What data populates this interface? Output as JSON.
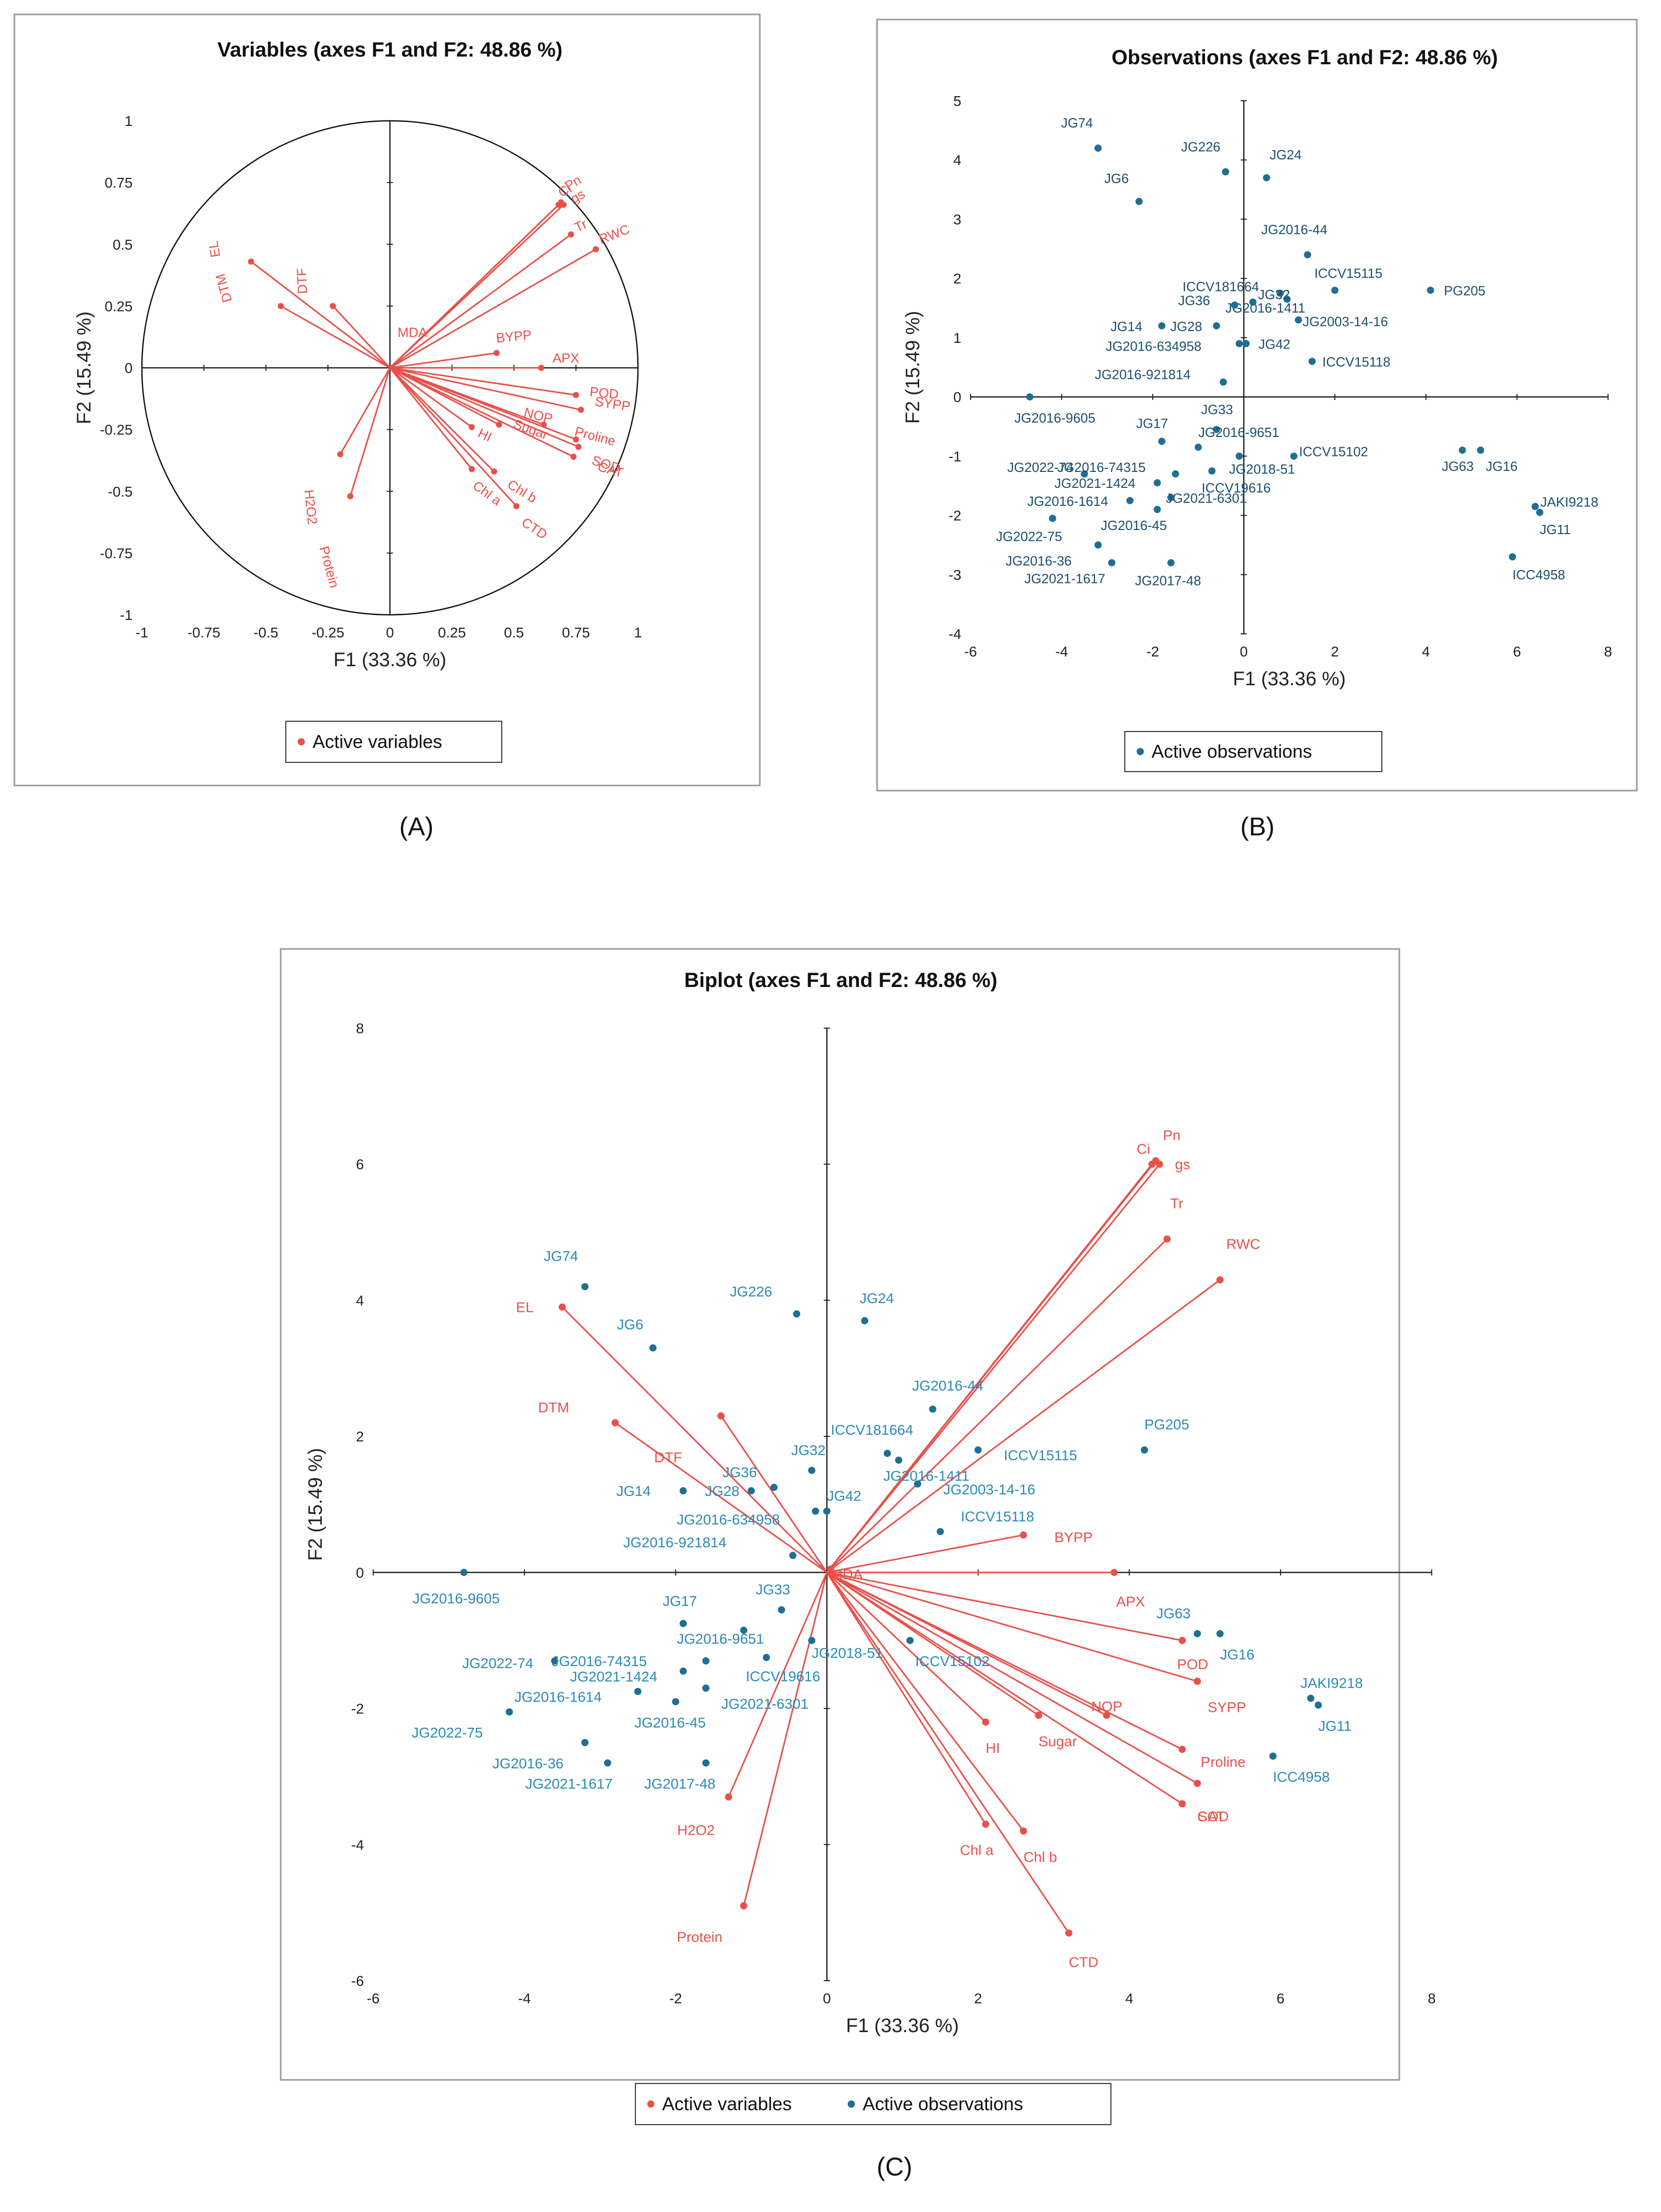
{
  "colors": {
    "variables": "#e8514b",
    "observations": "#1f6f93",
    "observation_labels_biplot": "#2c8ab4"
  },
  "chart_data": [
    {
      "id": "A",
      "type": "scatter",
      "caption": "(A)",
      "title": "Variables (axes F1 and F2: 48.86 %)",
      "xlabel": "F1 (33.36 %)",
      "ylabel": "F2 (15.49 %)",
      "xlim": [
        -1,
        1
      ],
      "ylim": [
        -1,
        1
      ],
      "xticks": [
        "-1",
        "-0.75",
        "-0.5",
        "-0.25",
        "0",
        "0.25",
        "0.5",
        "0.75",
        "1"
      ],
      "yticks": [
        "-1",
        "-0.75",
        "-0.5",
        "-0.25",
        "0",
        "0.25",
        "0.5",
        "0.75",
        "1"
      ],
      "legend": [
        "Active variables"
      ],
      "variables": [
        {
          "name": "Ci",
          "x": 0.68,
          "y": 0.66
        },
        {
          "name": "Pn",
          "x": 0.69,
          "y": 0.67
        },
        {
          "name": "gs",
          "x": 0.7,
          "y": 0.66
        },
        {
          "name": "Tr",
          "x": 0.73,
          "y": 0.54
        },
        {
          "name": "RWC",
          "x": 0.83,
          "y": 0.48
        },
        {
          "name": "EL",
          "x": -0.56,
          "y": 0.43
        },
        {
          "name": "DTF",
          "x": -0.23,
          "y": 0.25
        },
        {
          "name": "DTM",
          "x": -0.44,
          "y": 0.25
        },
        {
          "name": "MDA",
          "x": 0.01,
          "y": 0.0
        },
        {
          "name": "BYPP",
          "x": 0.43,
          "y": 0.06
        },
        {
          "name": "APX",
          "x": 0.61,
          "y": 0.0
        },
        {
          "name": "POD",
          "x": 0.75,
          "y": -0.11
        },
        {
          "name": "SYPP",
          "x": 0.77,
          "y": -0.17
        },
        {
          "name": "NOP",
          "x": 0.62,
          "y": -0.23
        },
        {
          "name": "Proline",
          "x": 0.75,
          "y": -0.29
        },
        {
          "name": "SOD",
          "x": 0.74,
          "y": -0.36
        },
        {
          "name": "CAT",
          "x": 0.76,
          "y": -0.32
        },
        {
          "name": "HI",
          "x": 0.33,
          "y": -0.24
        },
        {
          "name": "Sugar",
          "x": 0.44,
          "y": -0.23
        },
        {
          "name": "Chl b",
          "x": 0.42,
          "y": -0.42
        },
        {
          "name": "Chl a",
          "x": 0.33,
          "y": -0.41
        },
        {
          "name": "CTD",
          "x": 0.51,
          "y": -0.56
        },
        {
          "name": "H2O2",
          "x": -0.2,
          "y": -0.35
        },
        {
          "name": "Protein",
          "x": -0.16,
          "y": -0.52
        }
      ]
    },
    {
      "id": "B",
      "type": "scatter",
      "caption": "(B)",
      "title": "Observations (axes F1 and F2: 48.86 %)",
      "xlabel": "F1 (33.36 %)",
      "ylabel": "F2 (15.49 %)",
      "xlim": [
        -6,
        8
      ],
      "ylim": [
        -4,
        5
      ],
      "xticks": [
        "-6",
        "-4",
        "-2",
        "0",
        "2",
        "4",
        "6",
        "8"
      ],
      "yticks": [
        "-4",
        "-3",
        "-2",
        "-1",
        "0",
        "1",
        "2",
        "3",
        "4",
        "5"
      ],
      "legend": [
        "Active observations"
      ],
      "observations": [
        {
          "name": "JG74",
          "x": -3.2,
          "y": 4.2
        },
        {
          "name": "JG226",
          "x": -0.4,
          "y": 3.8
        },
        {
          "name": "JG24",
          "x": 0.5,
          "y": 3.7
        },
        {
          "name": "JG6",
          "x": -2.3,
          "y": 3.3
        },
        {
          "name": "JG2016-44",
          "x": 1.4,
          "y": 2.4
        },
        {
          "name": "ICCV15115",
          "x": 2.0,
          "y": 1.8
        },
        {
          "name": "PG205",
          "x": 4.1,
          "y": 1.8
        },
        {
          "name": "ICCV181664",
          "x": 0.8,
          "y": 1.75
        },
        {
          "name": "JG2016-1411",
          "x": 0.95,
          "y": 1.65
        },
        {
          "name": "JG36",
          "x": -0.2,
          "y": 1.55
        },
        {
          "name": "JG32",
          "x": 0.2,
          "y": 1.6
        },
        {
          "name": "JG2003-14-16",
          "x": 1.2,
          "y": 1.3
        },
        {
          "name": "JG14",
          "x": -1.8,
          "y": 1.2
        },
        {
          "name": "JG28",
          "x": -0.6,
          "y": 1.2
        },
        {
          "name": "JG42",
          "x": 0.05,
          "y": 0.9
        },
        {
          "name": "JG2016-634958",
          "x": -0.1,
          "y": 0.9
        },
        {
          "name": "ICCV15118",
          "x": 1.5,
          "y": 0.6
        },
        {
          "name": "JG2016-921814",
          "x": -0.45,
          "y": 0.25
        },
        {
          "name": "JG2016-9605",
          "x": -4.7,
          "y": 0.0
        },
        {
          "name": "JG33",
          "x": -0.6,
          "y": -0.55
        },
        {
          "name": "JG17",
          "x": -1.8,
          "y": -0.75
        },
        {
          "name": "JG2016-9651",
          "x": -1.0,
          "y": -0.85
        },
        {
          "name": "JG2018-51",
          "x": -0.1,
          "y": -1.0
        },
        {
          "name": "ICCV15102",
          "x": 1.1,
          "y": -1.0
        },
        {
          "name": "JG63",
          "x": 4.8,
          "y": -0.9
        },
        {
          "name": "JG16",
          "x": 5.2,
          "y": -0.9
        },
        {
          "name": "JG2022-74",
          "x": -3.5,
          "y": -1.3
        },
        {
          "name": "JG2016-74315",
          "x": -1.5,
          "y": -1.3
        },
        {
          "name": "ICCV19616",
          "x": -0.7,
          "y": -1.25
        },
        {
          "name": "JG2021-1424",
          "x": -1.9,
          "y": -1.45
        },
        {
          "name": "JG2016-1614",
          "x": -2.5,
          "y": -1.75
        },
        {
          "name": "JG2021-6301",
          "x": -1.6,
          "y": -1.7
        },
        {
          "name": "JG2016-45",
          "x": -1.9,
          "y": -1.9
        },
        {
          "name": "JAKI9218",
          "x": 6.4,
          "y": -1.85
        },
        {
          "name": "JG11",
          "x": 6.5,
          "y": -1.95
        },
        {
          "name": "JG2022-75",
          "x": -4.2,
          "y": -2.05
        },
        {
          "name": "JG2016-36",
          "x": -3.2,
          "y": -2.5
        },
        {
          "name": "JG2021-1617",
          "x": -2.9,
          "y": -2.8
        },
        {
          "name": "JG2017-48",
          "x": -1.6,
          "y": -2.8
        },
        {
          "name": "ICC4958",
          "x": 5.9,
          "y": -2.7
        }
      ]
    },
    {
      "id": "C",
      "type": "scatter",
      "caption": "(C)",
      "title": "Biplot (axes F1 and F2: 48.86 %)",
      "xlabel": "F1 (33.36 %)",
      "ylabel": "F2 (15.49 %)",
      "xlim": [
        -6,
        8
      ],
      "ylim": [
        -6,
        8
      ],
      "xticks": [
        "-6",
        "-4",
        "-2",
        "0",
        "2",
        "4",
        "6",
        "8"
      ],
      "yticks": [
        "-6",
        "-4",
        "-2",
        "0",
        "2",
        "4",
        "6",
        "8"
      ],
      "legend": [
        "Active variables",
        "Active observations"
      ],
      "variables": [
        {
          "name": "Ci",
          "x": 4.3,
          "y": 6.0
        },
        {
          "name": "Pn",
          "x": 4.35,
          "y": 6.05
        },
        {
          "name": "gs",
          "x": 4.4,
          "y": 6.0
        },
        {
          "name": "Tr",
          "x": 4.5,
          "y": 4.9
        },
        {
          "name": "RWC",
          "x": 5.2,
          "y": 4.3
        },
        {
          "name": "EL",
          "x": -3.5,
          "y": 3.9
        },
        {
          "name": "DTF",
          "x": -1.4,
          "y": 2.3
        },
        {
          "name": "DTM",
          "x": -2.8,
          "y": 2.2
        },
        {
          "name": "MDA",
          "x": 0.05,
          "y": 0.05
        },
        {
          "name": "BYPP",
          "x": 2.6,
          "y": 0.55
        },
        {
          "name": "APX",
          "x": 3.8,
          "y": 0.0
        },
        {
          "name": "POD",
          "x": 4.7,
          "y": -1.0
        },
        {
          "name": "SYPP",
          "x": 4.9,
          "y": -1.6
        },
        {
          "name": "NOP",
          "x": 3.7,
          "y": -2.1
        },
        {
          "name": "Proline",
          "x": 4.7,
          "y": -2.6
        },
        {
          "name": "SOD",
          "x": 4.7,
          "y": -3.4
        },
        {
          "name": "CAT",
          "x": 4.9,
          "y": -3.1
        },
        {
          "name": "HI",
          "x": 2.1,
          "y": -2.2
        },
        {
          "name": "Sugar",
          "x": 2.8,
          "y": -2.1
        },
        {
          "name": "Chl b",
          "x": 2.6,
          "y": -3.8
        },
        {
          "name": "Chl a",
          "x": 2.1,
          "y": -3.7
        },
        {
          "name": "CTD",
          "x": 3.2,
          "y": -5.3
        },
        {
          "name": "H2O2",
          "x": -1.3,
          "y": -3.3
        },
        {
          "name": "Protein",
          "x": -1.1,
          "y": -4.9
        }
      ],
      "observations": [
        {
          "name": "JG74",
          "x": -3.2,
          "y": 4.2
        },
        {
          "name": "JG226",
          "x": -0.4,
          "y": 3.8
        },
        {
          "name": "JG24",
          "x": 0.5,
          "y": 3.7
        },
        {
          "name": "JG6",
          "x": -2.3,
          "y": 3.3
        },
        {
          "name": "JG2016-44",
          "x": 1.4,
          "y": 2.4
        },
        {
          "name": "ICCV15115",
          "x": 2.0,
          "y": 1.8
        },
        {
          "name": "PG205",
          "x": 4.2,
          "y": 1.8
        },
        {
          "name": "ICCV181664",
          "x": 0.8,
          "y": 1.75
        },
        {
          "name": "JG2016-1411",
          "x": 0.95,
          "y": 1.65
        },
        {
          "name": "JG36",
          "x": -0.7,
          "y": 1.25
        },
        {
          "name": "JG32",
          "x": -0.2,
          "y": 1.5
        },
        {
          "name": "JG2003-14-16",
          "x": 1.2,
          "y": 1.3
        },
        {
          "name": "JG14",
          "x": -1.9,
          "y": 1.2
        },
        {
          "name": "JG28",
          "x": -1.0,
          "y": 1.2
        },
        {
          "name": "JG42",
          "x": 0.0,
          "y": 0.9
        },
        {
          "name": "JG2016-634958",
          "x": -0.15,
          "y": 0.9
        },
        {
          "name": "ICCV15118",
          "x": 1.5,
          "y": 0.6
        },
        {
          "name": "JG2016-921814",
          "x": -0.45,
          "y": 0.25
        },
        {
          "name": "JG2016-9605",
          "x": -4.8,
          "y": 0.0
        },
        {
          "name": "JG33",
          "x": -0.6,
          "y": -0.55
        },
        {
          "name": "JG17",
          "x": -1.9,
          "y": -0.75
        },
        {
          "name": "JG2016-9651",
          "x": -1.1,
          "y": -0.85
        },
        {
          "name": "JG2018-51",
          "x": -0.2,
          "y": -1.0
        },
        {
          "name": "ICCV15102",
          "x": 1.1,
          "y": -1.0
        },
        {
          "name": "JG63",
          "x": 4.9,
          "y": -0.9
        },
        {
          "name": "JG16",
          "x": 5.2,
          "y": -0.9
        },
        {
          "name": "JG2022-74",
          "x": -3.6,
          "y": -1.3
        },
        {
          "name": "JG2016-74315",
          "x": -1.6,
          "y": -1.3
        },
        {
          "name": "ICCV19616",
          "x": -0.8,
          "y": -1.25
        },
        {
          "name": "JG2021-1424",
          "x": -1.9,
          "y": -1.45
        },
        {
          "name": "JG2016-1614",
          "x": -2.5,
          "y": -1.75
        },
        {
          "name": "JG2021-6301",
          "x": -1.6,
          "y": -1.7
        },
        {
          "name": "JG2016-45",
          "x": -2.0,
          "y": -1.9
        },
        {
          "name": "JAKI9218",
          "x": 6.4,
          "y": -1.85
        },
        {
          "name": "JG11",
          "x": 6.5,
          "y": -1.95
        },
        {
          "name": "JG2022-75",
          "x": -4.2,
          "y": -2.05
        },
        {
          "name": "JG2016-36",
          "x": -3.2,
          "y": -2.5
        },
        {
          "name": "JG2021-1617",
          "x": -2.9,
          "y": -2.8
        },
        {
          "name": "JG2017-48",
          "x": -1.6,
          "y": -2.8
        },
        {
          "name": "ICC4958",
          "x": 5.9,
          "y": -2.7
        }
      ]
    }
  ]
}
